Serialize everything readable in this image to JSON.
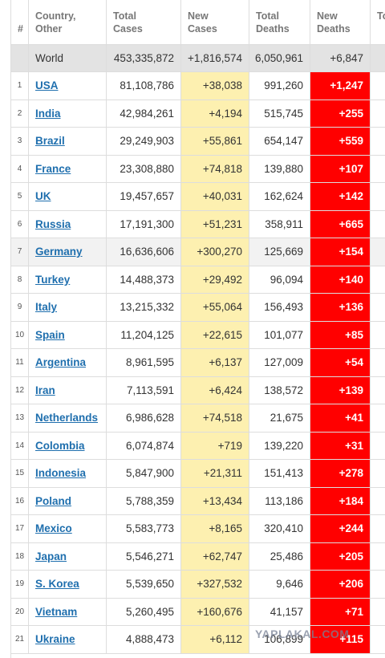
{
  "header": {
    "columns": [
      "#",
      "Country, Other",
      "Total Cases",
      "New Cases",
      "Total Deaths",
      "New Deaths",
      "To Re"
    ]
  },
  "world": [
    "World",
    "453,335,872",
    "+1,816,574",
    "6,050,961",
    "+6,847"
  ],
  "rows": [
    [
      "1",
      "USA",
      "81,108,786",
      "+38,038",
      "991,260",
      "+1,247"
    ],
    [
      "2",
      "India",
      "42,984,261",
      "+4,194",
      "515,745",
      "+255"
    ],
    [
      "3",
      "Brazil",
      "29,249,903",
      "+55,861",
      "654,147",
      "+559"
    ],
    [
      "4",
      "France",
      "23,308,880",
      "+74,818",
      "139,880",
      "+107"
    ],
    [
      "5",
      "UK",
      "19,457,657",
      "+40,031",
      "162,624",
      "+142"
    ],
    [
      "6",
      "Russia",
      "17,191,300",
      "+51,231",
      "358,911",
      "+665"
    ],
    [
      "7",
      "Germany",
      "16,636,606",
      "+300,270",
      "125,669",
      "+154"
    ],
    [
      "8",
      "Turkey",
      "14,488,373",
      "+29,492",
      "96,094",
      "+140"
    ],
    [
      "9",
      "Italy",
      "13,215,332",
      "+55,064",
      "156,493",
      "+136"
    ],
    [
      "10",
      "Spain",
      "11,204,125",
      "+22,615",
      "101,077",
      "+85"
    ],
    [
      "11",
      "Argentina",
      "8,961,595",
      "+6,137",
      "127,009",
      "+54"
    ],
    [
      "12",
      "Iran",
      "7,113,591",
      "+6,424",
      "138,572",
      "+139"
    ],
    [
      "13",
      "Netherlands",
      "6,986,628",
      "+74,518",
      "21,675",
      "+41"
    ],
    [
      "14",
      "Colombia",
      "6,074,874",
      "+719",
      "139,220",
      "+31"
    ],
    [
      "15",
      "Indonesia",
      "5,847,900",
      "+21,311",
      "151,413",
      "+278"
    ],
    [
      "16",
      "Poland",
      "5,788,359",
      "+13,434",
      "113,186",
      "+184"
    ],
    [
      "17",
      "Mexico",
      "5,583,773",
      "+8,165",
      "320,410",
      "+244"
    ],
    [
      "18",
      "Japan",
      "5,546,271",
      "+62,747",
      "25,486",
      "+205"
    ],
    [
      "19",
      "S. Korea",
      "5,539,650",
      "+327,532",
      "9,646",
      "+206"
    ],
    [
      "20",
      "Vietnam",
      "5,260,495",
      "+160,676",
      "41,157",
      "+71"
    ],
    [
      "21",
      "Ukraine",
      "4,888,473",
      "+6,112",
      "106,899",
      "+115"
    ]
  ],
  "watermark": "YAPLAKAL.COM"
}
